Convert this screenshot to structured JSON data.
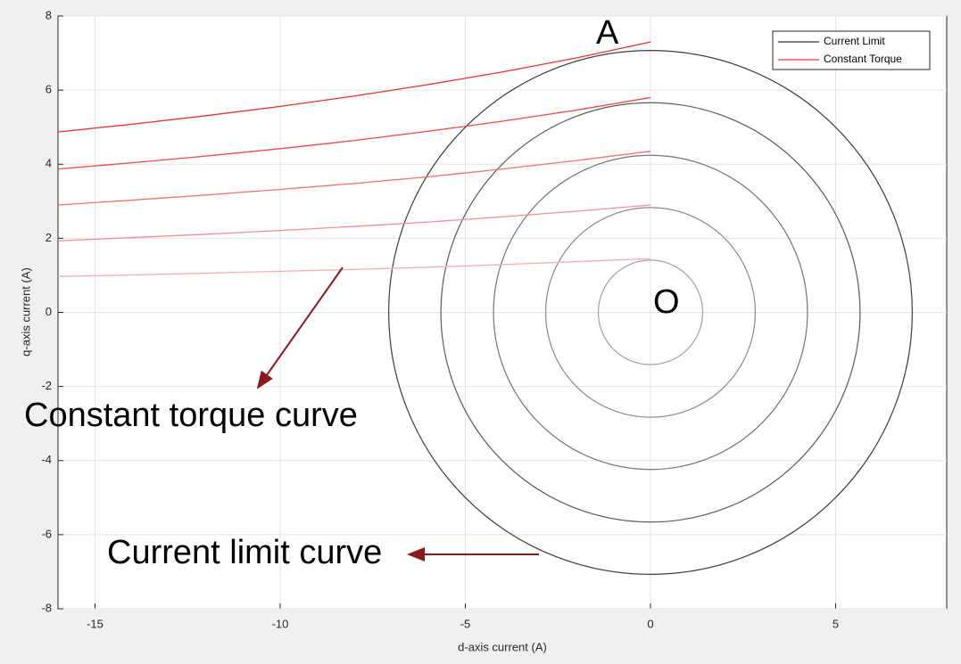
{
  "chart_data": {
    "type": "line",
    "xlabel": "d-axis current (A)",
    "ylabel": "q-axis current (A)",
    "xlim": [
      -16,
      8
    ],
    "ylim": [
      -8,
      8
    ],
    "xticks": [
      -15,
      -10,
      -5,
      0,
      5
    ],
    "yticks": [
      -8,
      -6,
      -4,
      -2,
      0,
      2,
      4,
      6,
      8
    ],
    "grid": true,
    "legend": "upper right",
    "series": [
      {
        "name": "Current Limit",
        "color": "#000000",
        "shape": "circle",
        "radii": [
          1.41,
          2.83,
          4.24,
          5.66,
          7.07
        ],
        "shades": [
          "#a0a0a0",
          "#8a8a8a",
          "#747474",
          "#5a5a5a",
          "#3c3c3c"
        ]
      },
      {
        "name": "Constant Torque",
        "color": "#ff0000",
        "shape": "curve",
        "x": [
          -16,
          -14,
          -12,
          -10,
          -8,
          -6,
          -4,
          -2,
          0
        ],
        "curves": [
          [
            4.87,
            5.08,
            5.31,
            5.56,
            5.84,
            6.15,
            6.49,
            6.87,
            7.3
          ],
          [
            3.87,
            4.04,
            4.22,
            4.42,
            4.64,
            4.89,
            5.16,
            5.46,
            5.8
          ],
          [
            2.9,
            3.03,
            3.17,
            3.32,
            3.48,
            3.66,
            3.87,
            4.1,
            4.35
          ],
          [
            1.93,
            2.02,
            2.11,
            2.21,
            2.32,
            2.44,
            2.58,
            2.73,
            2.9
          ],
          [
            0.97,
            1.01,
            1.06,
            1.11,
            1.16,
            1.22,
            1.29,
            1.37,
            1.45
          ]
        ],
        "shades": [
          "#e83030",
          "#ec4a4a",
          "#f07070",
          "#f49090",
          "#f8b0b0"
        ]
      }
    ],
    "annotations": [
      "A",
      "O",
      "Constant torque curve",
      "Current limit curve"
    ]
  }
}
